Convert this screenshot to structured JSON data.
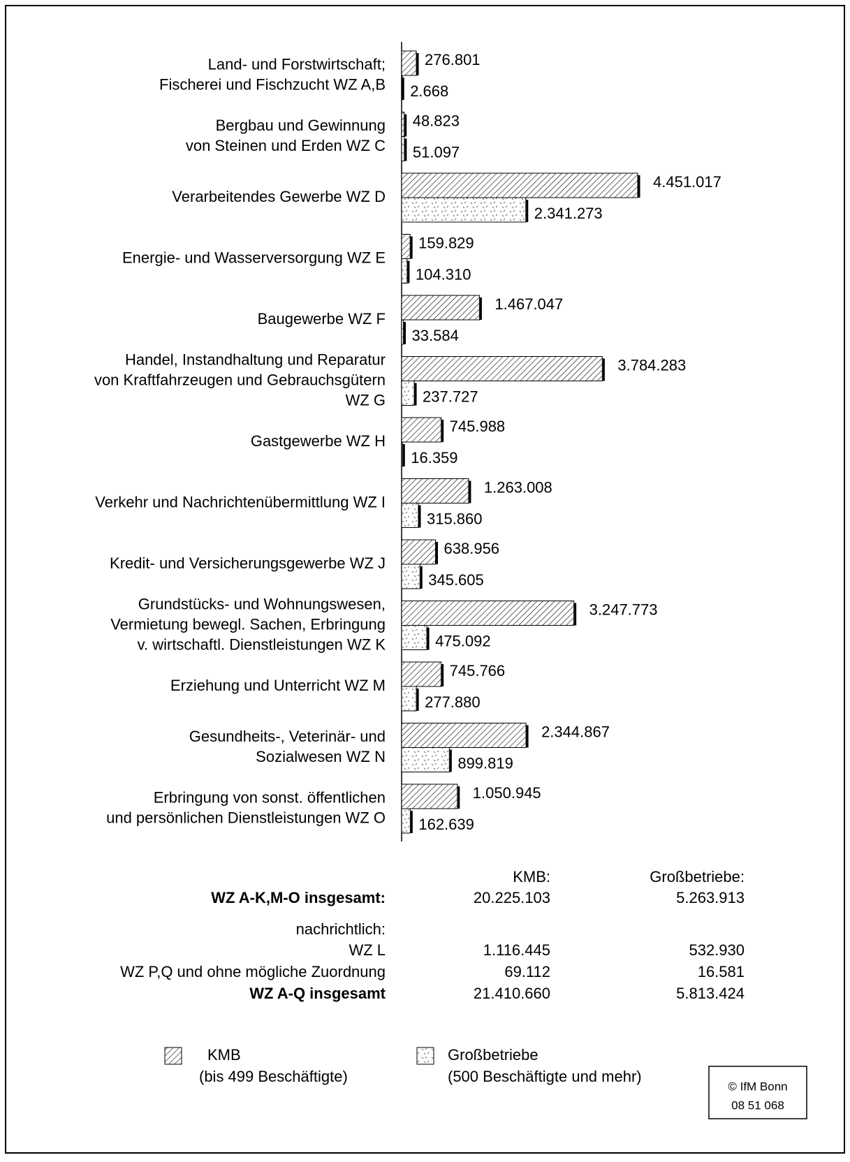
{
  "chart_data": {
    "type": "bar",
    "orientation": "horizontal",
    "categories": [
      [
        "Land- und Forstwirtschaft;",
        "Fischerei und Fischzucht WZ A,B"
      ],
      [
        "Bergbau und Gewinnung",
        "von Steinen und Erden WZ C"
      ],
      [
        "Verarbeitendes Gewerbe WZ D"
      ],
      [
        "Energie- und Wasserversorgung WZ E"
      ],
      [
        "Baugewerbe WZ F"
      ],
      [
        "Handel, Instandhaltung und Reparatur",
        "von Kraftfahrzeugen und Gebrauchsgütern",
        "WZ G"
      ],
      [
        "Gastgewerbe WZ H"
      ],
      [
        "Verkehr und Nachrichtenübermittlung WZ I"
      ],
      [
        "Kredit- und Versicherungsgewerbe WZ J"
      ],
      [
        "Grundstücks- und Wohnungswesen,",
        "Vermietung bewegl. Sachen, Erbringung",
        "v. wirtschaftl. Dienstleistungen WZ K"
      ],
      [
        "Erziehung und Unterricht WZ M"
      ],
      [
        "Gesundheits-, Veterinär- und",
        "Sozialwesen WZ N"
      ],
      [
        "Erbringung von sonst. öffentlichen",
        "und persönlichen Dienstleistungen WZ O"
      ]
    ],
    "series": [
      {
        "name": "KMB",
        "description": "(bis 499 Beschäftigte)",
        "color": "#000000",
        "pattern": "hatch",
        "values": [
          276801,
          48823,
          4451017,
          159829,
          1467047,
          3784283,
          745988,
          1263008,
          638956,
          3247773,
          745766,
          2344867,
          1050945
        ],
        "value_labels": [
          "276.801",
          "48.823",
          "4.451.017",
          "159.829",
          "1.467.047",
          "3.784.283",
          "745.988",
          "1.263.008",
          "638.956",
          "3.247.773",
          "745.766",
          "2.344.867",
          "1.050.945"
        ]
      },
      {
        "name": "Großbetriebe",
        "description": "(500 Beschäftigte und mehr)",
        "color": "#000000",
        "pattern": "dots",
        "values": [
          2668,
          51097,
          2341273,
          104310,
          33584,
          237727,
          16359,
          315860,
          345605,
          475092,
          277880,
          899819,
          162639
        ],
        "value_labels": [
          "2.668",
          "51.097",
          "2.341.273",
          "104.310",
          "33.584",
          "237.727",
          "16.359",
          "315.860",
          "345.605",
          "475.092",
          "277.880",
          "899.819",
          "162.639"
        ]
      }
    ],
    "grid": false
  },
  "summary": {
    "headers": [
      "KMB:",
      "Großbetriebe:"
    ],
    "rows": [
      {
        "label": "WZ A-K,M-O insgesamt:",
        "bold": true,
        "values": [
          "20.225.103",
          "5.263.913"
        ]
      },
      {
        "label": "nachrichtlich:",
        "bold": false,
        "values": []
      },
      {
        "label": "WZ L",
        "bold": false,
        "values": [
          "1.116.445",
          "532.930"
        ]
      },
      {
        "label": "WZ P,Q und ohne mögliche Zuordnung",
        "bold": false,
        "values": [
          "69.112",
          "16.581"
        ]
      },
      {
        "label": "WZ A-Q insgesamt",
        "bold": true,
        "values": [
          "21.410.660",
          "5.813.424"
        ]
      }
    ]
  },
  "source": [
    "© IfM Bonn",
    "08 51 068"
  ]
}
